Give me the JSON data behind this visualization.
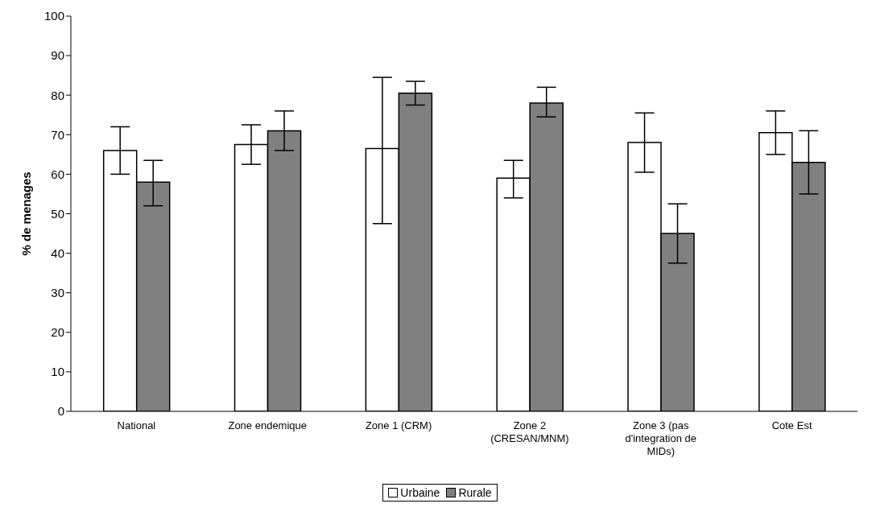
{
  "chart_data": {
    "type": "bar",
    "ylabel": "% de menages",
    "categories": [
      "National",
      "Zone endemique",
      "Zone 1 (CRM)",
      "Zone 2 (CRESAN/MNM)",
      "Zone 3 (pas d'integration de MIDs)",
      "Cote Est"
    ],
    "series": [
      {
        "name": "Urbaine",
        "color": "#ffffff",
        "values": [
          66,
          67.5,
          66.5,
          59,
          68,
          70.5
        ],
        "errors": [
          [
            60,
            72
          ],
          [
            62.5,
            72.5
          ],
          [
            47.5,
            84.5
          ],
          [
            54,
            63.5
          ],
          [
            60.5,
            75.5
          ],
          [
            65,
            76
          ]
        ]
      },
      {
        "name": "Rurale",
        "color": "#808080",
        "values": [
          58,
          71,
          80.5,
          78,
          45,
          63
        ],
        "errors": [
          [
            52,
            63.5
          ],
          [
            66,
            76
          ],
          [
            77.5,
            83.5
          ],
          [
            74.5,
            82
          ],
          [
            37.5,
            52.5
          ],
          [
            55,
            71
          ]
        ]
      }
    ],
    "ylim": [
      0,
      100
    ],
    "yticks": [
      0,
      10,
      20,
      30,
      40,
      50,
      60,
      70,
      80,
      90,
      100
    ],
    "grid": false,
    "legend": "bottom"
  }
}
